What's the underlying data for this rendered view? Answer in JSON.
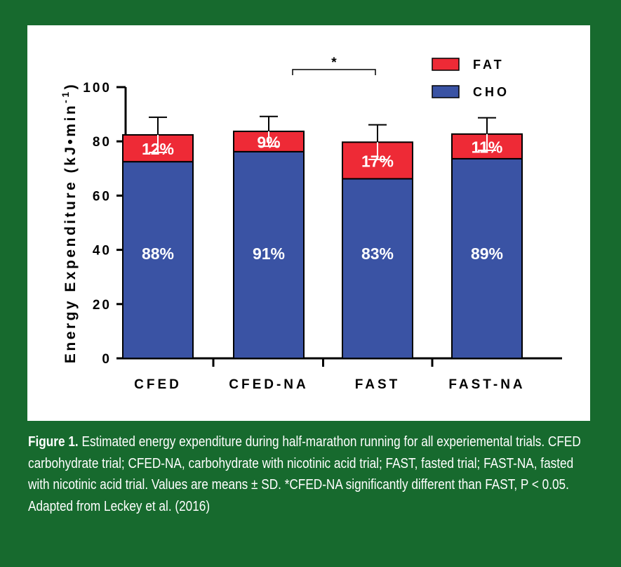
{
  "chart_data": {
    "type": "bar",
    "stacked": true,
    "categories": [
      "CFED",
      "CFED-NA",
      "FAST",
      "FAST-NA"
    ],
    "series": [
      {
        "name": "CHO",
        "color": "#3a53a4",
        "values": [
          72.5,
          76.2,
          66.2,
          73.6
        ],
        "labels": [
          "88%",
          "91%",
          "83%",
          "89%"
        ]
      },
      {
        "name": "FAT",
        "color": "#ee2a36",
        "values": [
          9.9,
          7.5,
          13.5,
          9.1
        ],
        "labels": [
          "12%",
          "9%",
          "17%",
          "11%"
        ]
      }
    ],
    "totals": [
      82.4,
      83.7,
      79.7,
      82.7
    ],
    "sd": [
      6.5,
      5.5,
      6.4,
      6.0
    ],
    "ylabel_main": "Energy Expenditure (kJ•min",
    "ylabel_sup": "-1",
    "ylabel_close": ")",
    "ylim": [
      0,
      100
    ],
    "yticks": [
      "0",
      "20",
      "40",
      "60",
      "80",
      "100"
    ],
    "yticks_values": [
      0,
      20,
      40,
      60,
      80,
      100
    ],
    "legend": [
      "FAT",
      "CHO"
    ],
    "legend_position": "top-right",
    "significance": {
      "from": "CFED-NA",
      "to": "FAST",
      "label": "*"
    }
  },
  "caption": {
    "lead": "Figure 1.",
    "text": " Estimated energy expenditure during half-marathon running for all experiemental trials. CFED carbohydrate trial; CFED-NA, carbohydrate with nicotinic acid trial; FAST, fasted trial; FAST-NA, fasted with nicotinic acid trial. Values are means ± SD. *CFED-NA significantly different than FAST, P < 0.05. Adapted from Leckey et al. (2016)"
  }
}
